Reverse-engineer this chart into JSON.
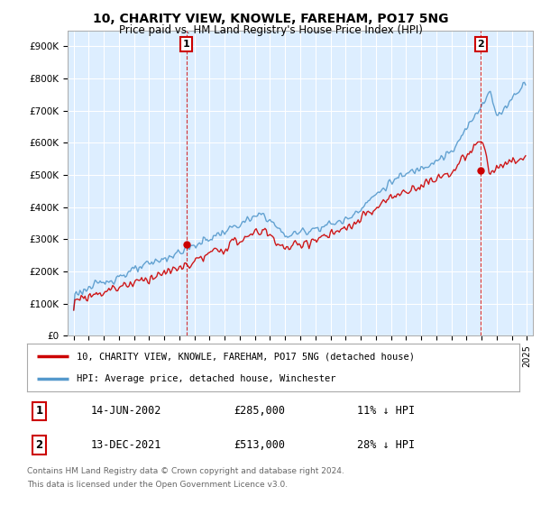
{
  "title": "10, CHARITY VIEW, KNOWLE, FAREHAM, PO17 5NG",
  "subtitle": "Price paid vs. HM Land Registry's House Price Index (HPI)",
  "ylim": [
    0,
    950000
  ],
  "yticks": [
    0,
    100000,
    200000,
    300000,
    400000,
    500000,
    600000,
    700000,
    800000,
    900000
  ],
  "ytick_labels": [
    "£0",
    "£100K",
    "£200K",
    "£300K",
    "£400K",
    "£500K",
    "£600K",
    "£700K",
    "£800K",
    "£900K"
  ],
  "background_color": "#ffffff",
  "plot_bg_color": "#ddeeff",
  "grid_color": "#ffffff",
  "hpi_color": "#5599cc",
  "price_color": "#cc0000",
  "sale1_date": "14-JUN-2002",
  "sale1_price": 285000,
  "sale1_label": "11% ↓ HPI",
  "sale2_date": "13-DEC-2021",
  "sale2_price": 513000,
  "sale2_label": "28% ↓ HPI",
  "legend_label1": "10, CHARITY VIEW, KNOWLE, FAREHAM, PO17 5NG (detached house)",
  "legend_label2": "HPI: Average price, detached house, Winchester",
  "footer1": "Contains HM Land Registry data © Crown copyright and database right 2024.",
  "footer2": "This data is licensed under the Open Government Licence v3.0.",
  "sale1_x": 2002.45,
  "sale2_x": 2021.95,
  "xlim_min": 1994.6,
  "xlim_max": 2025.4
}
